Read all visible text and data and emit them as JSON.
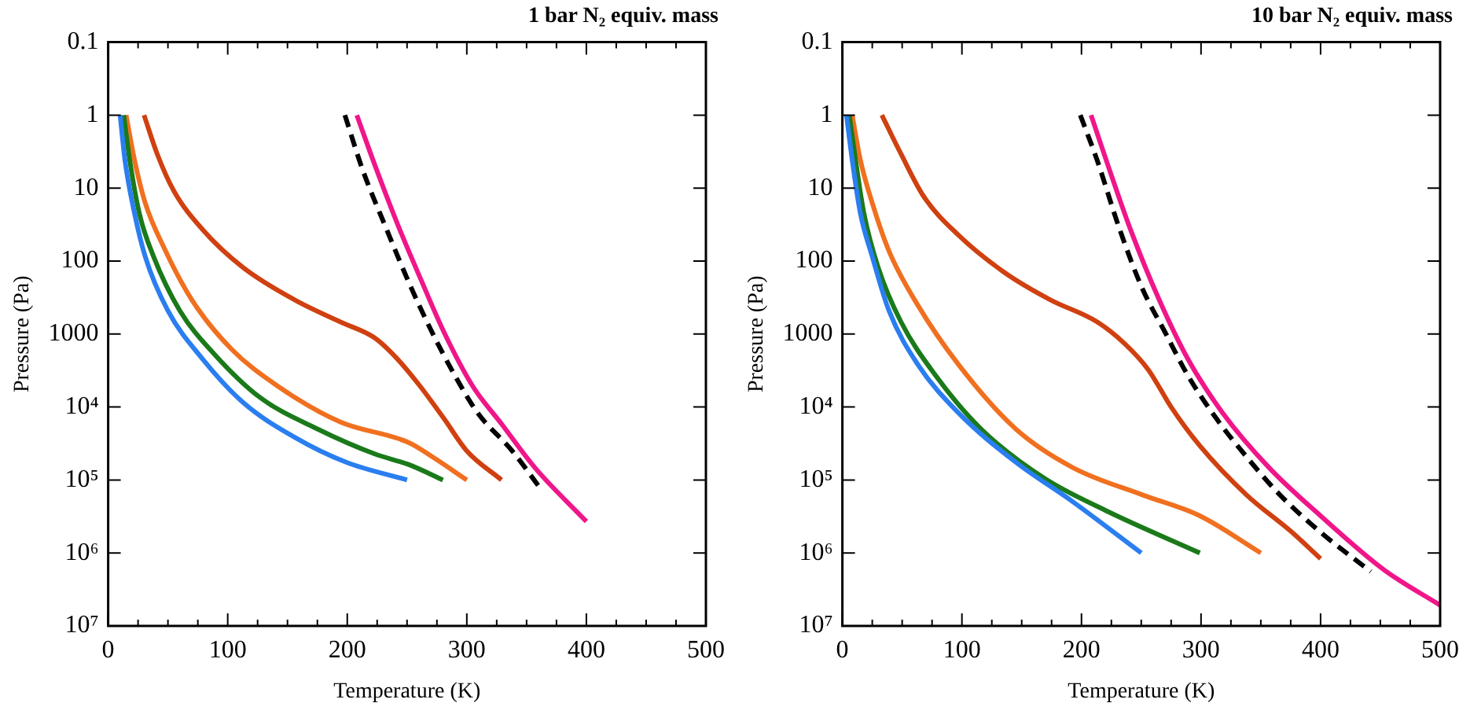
{
  "chart_data": [
    {
      "type": "line",
      "title": "1 bar N₂ equiv. mass",
      "xlabel": "Temperature (K)",
      "ylabel": "Pressure (Pa)",
      "log": "y",
      "grid": false,
      "legend": false,
      "marker": "none",
      "xlim": [
        0,
        500
      ],
      "xticks": [
        0,
        {
          "value": 25,
          "label": null
        },
        {
          "value": 50,
          "label": null
        },
        {
          "value": 75,
          "label": null
        },
        100,
        {
          "value": 125,
          "label": null
        },
        {
          "value": 150,
          "label": null
        },
        {
          "value": 175,
          "label": null
        },
        200,
        {
          "value": 225,
          "label": null
        },
        {
          "value": 250,
          "label": null
        },
        {
          "value": 275,
          "label": null
        },
        300,
        {
          "value": 325,
          "label": null
        },
        {
          "value": 350,
          "label": null
        },
        {
          "value": 375,
          "label": null
        },
        400,
        {
          "value": 425,
          "label": null
        },
        {
          "value": 450,
          "label": null
        },
        {
          "value": 475,
          "label": null
        },
        500
      ],
      "ylim": [
        10000000,
        0.1
      ],
      "yticks": [
        0.1,
        1,
        10,
        100,
        1000,
        {
          "value": 10000,
          "label": "10⁴"
        },
        {
          "value": 100000,
          "label": "10⁵"
        },
        {
          "value": 1000000,
          "label": "10⁶"
        },
        {
          "value": 10000000,
          "label": "10⁷"
        }
      ],
      "series": [
        {
          "color": "#2a7ef0",
          "x": [
            10,
            14,
            22,
            31,
            50,
            79,
            113,
            156,
            199,
            250
          ],
          "values": [
            1,
            4.1,
            22,
            87,
            480,
            2200,
            8700,
            26000,
            57000,
            100000
          ]
        },
        {
          "color": "#1a7a1a",
          "x": [
            13,
            18,
            26,
            38,
            60,
            89,
            127,
            175,
            223,
            252,
            280
          ],
          "values": [
            1,
            4.1,
            22,
            87,
            480,
            1900,
            7400,
            20000,
            44000,
            62000,
            100000
          ]
        },
        {
          "color": "#f07020",
          "x": [
            15,
            22,
            31,
            46,
            70,
            103,
            142,
            194,
            252,
            271,
            300
          ],
          "values": [
            1,
            4.1,
            16,
            62,
            340,
            1600,
            5200,
            16000,
            31000,
            48000,
            100000
          ]
        },
        {
          "color": "#d04010",
          "x": [
            30,
            41,
            55,
            79,
            113,
            156,
            194,
            223,
            242,
            261,
            281,
            300,
            329
          ],
          "values": [
            1,
            3.4,
            11,
            37,
            123,
            340,
            680,
            1130,
            2200,
            5200,
            14500,
            40000,
            100000
          ]
        },
        {
          "color": "#000000",
          "line_style": "dashed",
          "x": [
            198,
            213,
            233,
            252,
            271,
            290,
            309,
            338,
            362
          ],
          "values": [
            1,
            5.7,
            37,
            205,
            950,
            3700,
            12000,
            40000,
            134000
          ]
        },
        {
          "color": "#f0168a",
          "x": [
            208,
            223,
            242,
            261,
            281,
            305,
            329,
            357,
            400
          ],
          "values": [
            1,
            4.8,
            31,
            170,
            950,
            5200,
            17000,
            68000,
            370000
          ]
        }
      ]
    },
    {
      "type": "line",
      "title": "10 bar N₂ equiv. mass",
      "xlabel": "Temperature (K)",
      "ylabel": "Pressure (Pa)",
      "log": "y",
      "grid": false,
      "legend": false,
      "marker": "none",
      "xlim": [
        0,
        500
      ],
      "xticks": [
        0,
        {
          "value": 25,
          "label": null
        },
        {
          "value": 50,
          "label": null
        },
        {
          "value": 75,
          "label": null
        },
        100,
        {
          "value": 125,
          "label": null
        },
        {
          "value": 150,
          "label": null
        },
        {
          "value": 175,
          "label": null
        },
        200,
        {
          "value": 225,
          "label": null
        },
        {
          "value": 250,
          "label": null
        },
        {
          "value": 275,
          "label": null
        },
        300,
        {
          "value": 325,
          "label": null
        },
        {
          "value": 350,
          "label": null
        },
        {
          "value": 375,
          "label": null
        },
        400,
        {
          "value": 425,
          "label": null
        },
        {
          "value": 450,
          "label": null
        },
        {
          "value": 475,
          "label": null
        },
        500
      ],
      "ylim": [
        10000000,
        0.1
      ],
      "yticks": [
        0.1,
        1,
        10,
        100,
        1000,
        {
          "value": 10000,
          "label": "10⁴"
        },
        {
          "value": 100000,
          "label": "10⁵"
        },
        {
          "value": 1000000,
          "label": "10⁶"
        },
        {
          "value": 10000000,
          "label": "10⁷"
        }
      ],
      "series": [
        {
          "color": "#2a7ef0",
          "x": [
            3.4,
            8.2,
            15,
            25,
            39,
            63,
            97,
            145,
            193,
            250
          ],
          "values": [
            1,
            4.1,
            22,
            87,
            480,
            2600,
            12000,
            57000,
            200000,
            1000000
          ]
        },
        {
          "color": "#1a7a1a",
          "x": [
            5.8,
            11,
            18,
            30,
            49,
            78,
            116,
            169,
            222,
            299
          ],
          "values": [
            1,
            4.1,
            22,
            123,
            680,
            3700,
            20000,
            95000,
            270000,
            1000000
          ]
        },
        {
          "color": "#f07020",
          "x": [
            8.2,
            15,
            25,
            39,
            63,
            97,
            145,
            193,
            251,
            299,
            350
          ],
          "values": [
            1,
            4.1,
            16,
            73,
            400,
            2600,
            20000,
            68000,
            160000,
            310000,
            1000000
          ]
        },
        {
          "color": "#d04010",
          "x": [
            33,
            49,
            68,
            97,
            136,
            174,
            213,
            236,
            256,
            275,
            299,
            338,
            376,
            400
          ],
          "values": [
            1,
            3.4,
            13,
            44,
            145,
            340,
            680,
            1350,
            3100,
            10000,
            34000,
            160000,
            520000,
            1200000
          ]
        },
        {
          "color": "#000000",
          "line_style": "dashed",
          "x": [
            199,
            213,
            232,
            251,
            270,
            289,
            313,
            338,
            366,
            400,
            442
          ],
          "values": [
            1,
            4.1,
            37,
            240,
            950,
            3700,
            14500,
            48000,
            160000,
            520000,
            1800000
          ]
        },
        {
          "color": "#f0168a",
          "x": [
            208,
            222,
            241,
            265,
            289,
            318,
            357,
            400,
            453,
            500
          ],
          "values": [
            1,
            4.8,
            37,
            340,
            2200,
            12000,
            68000,
            310000,
            1700000,
            5200000
          ]
        }
      ]
    }
  ]
}
